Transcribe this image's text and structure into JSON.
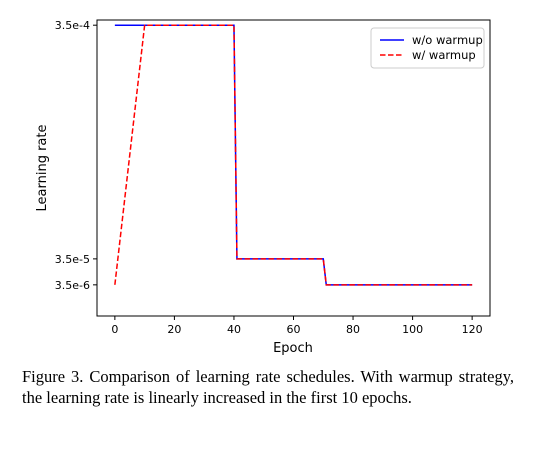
{
  "chart_data": {
    "type": "line",
    "xlabel": "Epoch",
    "ylabel": "Learning rate",
    "xlim": [
      -6,
      126
    ],
    "ylim": [
      -1.2,
      10.2
    ],
    "x_ticks": [
      0,
      20,
      40,
      60,
      80,
      100,
      120
    ],
    "y_ticks": [
      {
        "value": 0,
        "label": "3.5e-6"
      },
      {
        "value": 1,
        "label": "3.5e-5"
      },
      {
        "value": 10,
        "label": "3.5e-4"
      }
    ],
    "grid": false,
    "legend_position": "top-right",
    "series": [
      {
        "name": "w/o warmup",
        "color": "#0000ff",
        "dash": "solid",
        "x": [
          0,
          40,
          41,
          70,
          71,
          120
        ],
        "y": [
          10,
          10,
          1,
          1,
          0,
          0
        ]
      },
      {
        "name": "w/ warmup",
        "color": "#ff0000",
        "dash": "dashed",
        "x": [
          0,
          10,
          40,
          41,
          70,
          71,
          120
        ],
        "y": [
          0,
          10,
          10,
          1,
          1,
          0,
          0
        ]
      }
    ]
  },
  "caption": "Figure 3. Comparison of learning rate schedules. With warmup strategy, the learning rate is linearly increased in the first 10 epochs."
}
